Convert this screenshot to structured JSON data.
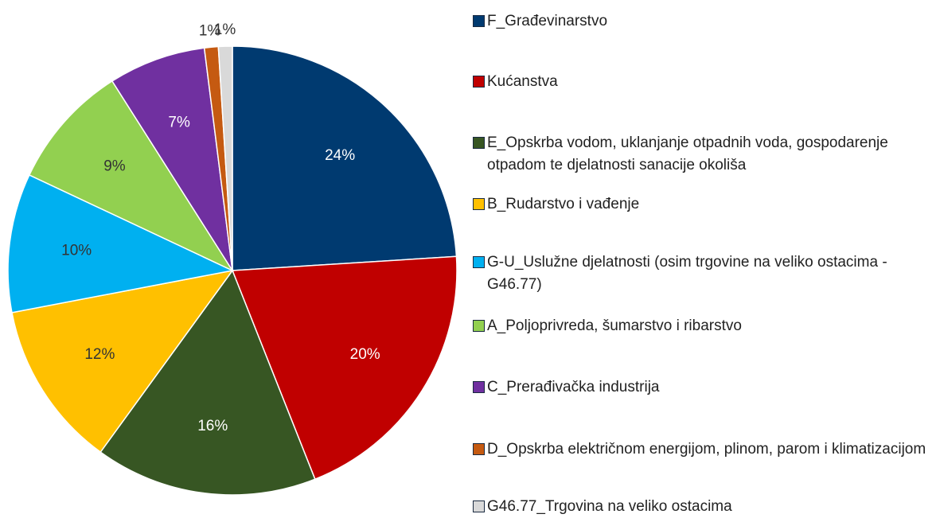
{
  "chart_data": {
    "type": "pie",
    "categories": [
      "F_Građevinarstvo",
      "Kućanstva",
      "E_Opskrba vodom, uklanjanje otpadnih voda, gospodarenje otpadom te djelatnosti sanacije okoliša",
      "B_Rudarstvo i vađenje",
      "G-U_Uslužne djelatnosti (osim trgovine na veliko ostacima - G46.77)",
      "A_Poljoprivreda, šumarstvo i ribarstvo",
      "C_Prerađivačka industrija",
      "D_Opskrba električnom energijom, plinom, parom i klimatizacijom",
      "G46.77_Trgovina na veliko ostacima"
    ],
    "values": [
      24,
      20,
      16,
      12,
      10,
      9,
      7,
      1,
      1
    ],
    "value_labels": [
      "24%",
      "20%",
      "16%",
      "12%",
      "10%",
      "9%",
      "7%",
      "1%",
      "1%"
    ],
    "colors": [
      "#003a70",
      "#c00000",
      "#375623",
      "#ffc000",
      "#00b0f0",
      "#92d050",
      "#7030a0",
      "#c55a11",
      "#d9d9d9"
    ],
    "legend": "right"
  }
}
